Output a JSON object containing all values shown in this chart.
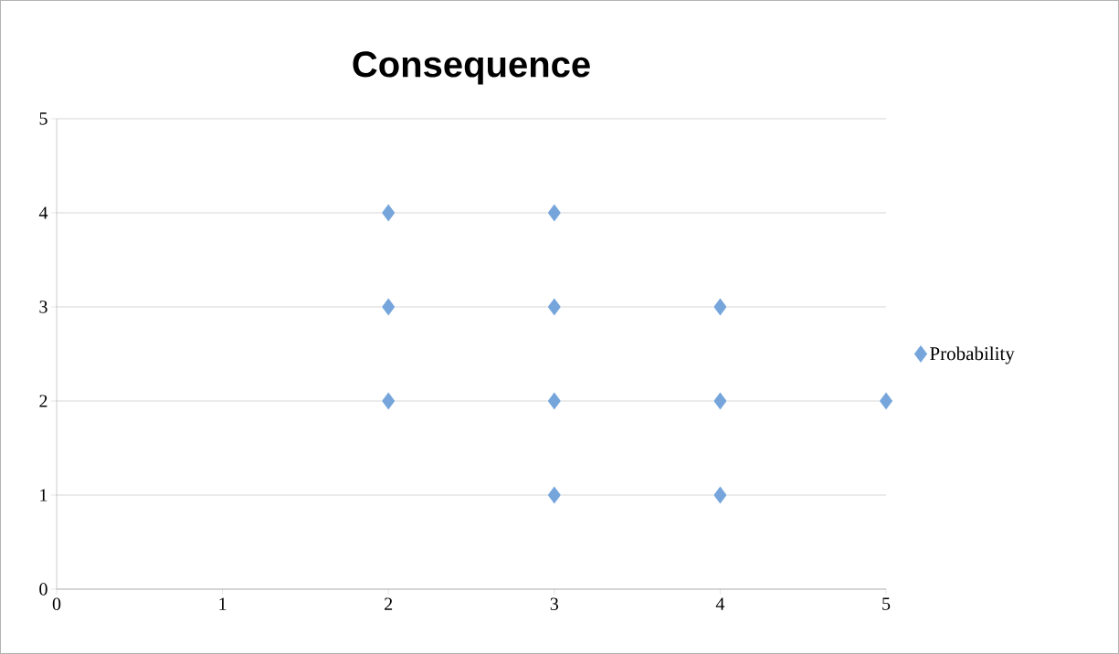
{
  "chart_data": {
    "type": "scatter",
    "title": "Consequence",
    "series": [
      {
        "name": "Probability",
        "color": "#76a5dc",
        "x": [
          2,
          3,
          2,
          3,
          4,
          2,
          3,
          4,
          5,
          3,
          4
        ],
        "values": [
          4,
          4,
          3,
          3,
          3,
          2,
          2,
          2,
          2,
          1,
          1
        ]
      }
    ],
    "xlim": [
      0,
      5
    ],
    "ylim": [
      0,
      5
    ],
    "xticks": [
      0,
      1,
      2,
      3,
      4,
      5
    ],
    "yticks": [
      0,
      1,
      2,
      3,
      4,
      5
    ],
    "grid": "y",
    "legend": "right",
    "marker": "diamond"
  }
}
